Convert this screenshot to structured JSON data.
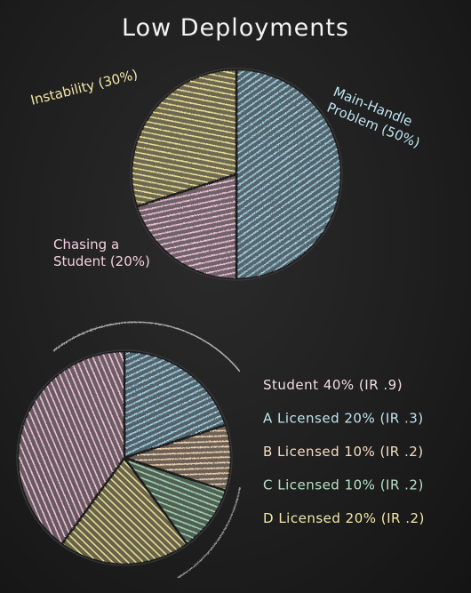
{
  "chart_data": [
    {
      "type": "pie",
      "title": "Low Deployments",
      "slices": [
        {
          "label": "Main-Handle Problem (50%)",
          "lines": [
            "Main-Handle",
            "Problem (50%)"
          ],
          "value": 50,
          "color": "#a9d6ea"
        },
        {
          "label": "Chasing a Student (20%)",
          "lines": [
            "Chasing a",
            "Student (20%)"
          ],
          "value": 20,
          "color": "#f2c7dc"
        },
        {
          "label": "Instability (30%)",
          "lines": [
            "Instability (30%)"
          ],
          "value": 30,
          "color": "#efe29b"
        }
      ]
    },
    {
      "type": "pie",
      "slices": [
        {
          "label": "A Licensed 20% (IR .3)",
          "value": 20,
          "color": "#a9d6ea"
        },
        {
          "label": "B Licensed 10% (IR .2)",
          "value": 10,
          "color": "#f6d6b6"
        },
        {
          "label": "C Licensed 10% (IR .2)",
          "value": 10,
          "color": "#a8d7b4"
        },
        {
          "label": "D Licensed 20% (IR .2)",
          "value": 20,
          "color": "#efe29b"
        },
        {
          "label": "Student 40% (IR .9)",
          "value": 40,
          "color": "#f2c7dc"
        }
      ],
      "legend": [
        {
          "text": "Student 40% (IR .9)",
          "color": "#f2dde6"
        },
        {
          "text": "A Licensed 20% (IR .3)",
          "color": "#bfe3f0"
        },
        {
          "text": "B Licensed 10% (IR .2)",
          "color": "#f6dcc0"
        },
        {
          "text": "C Licensed 10% (IR .2)",
          "color": "#b8e2c4"
        },
        {
          "text": "D Licensed 20% (IR .2)",
          "color": "#f2e7a8"
        }
      ]
    }
  ]
}
